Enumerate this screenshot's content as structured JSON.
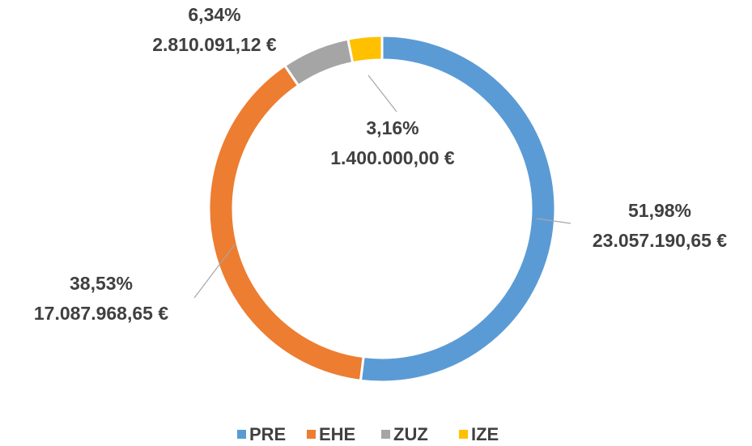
{
  "chart_data": {
    "type": "donut",
    "categories": [
      "PRE",
      "EHE",
      "ZUZ",
      "IZE"
    ],
    "values": [
      23057190.65,
      17087968.65,
      2810091.12,
      1400000.0
    ],
    "value_labels": [
      "23.057.190,65 €",
      "17.087.968,65 €",
      "2.810.091,12 €",
      "1.400.000,00 €"
    ],
    "percent_labels": [
      "51,98%",
      "38,53%",
      "6,34%",
      "3,16%"
    ],
    "colors": [
      "#5b9bd5",
      "#ed7d31",
      "#a5a5a5",
      "#ffc000"
    ],
    "legend": "bottom"
  }
}
